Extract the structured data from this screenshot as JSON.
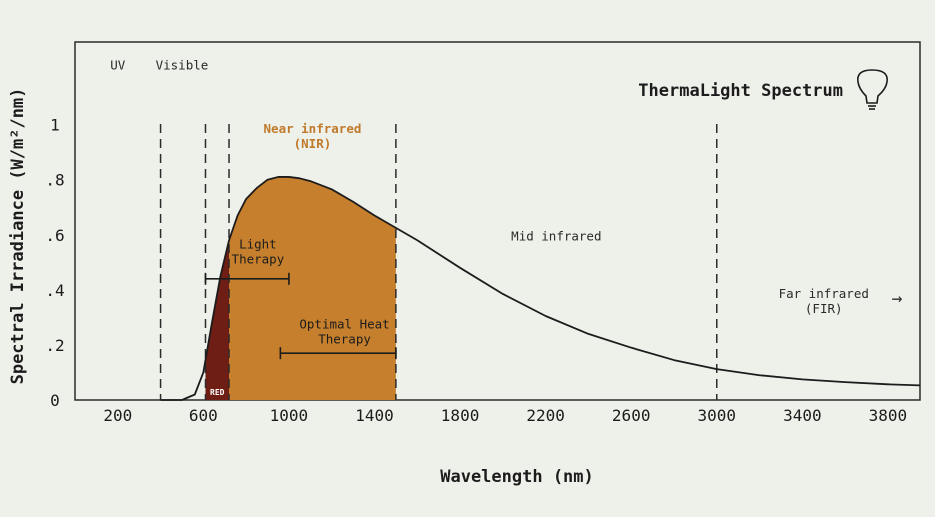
{
  "chart_data": {
    "type": "area",
    "title": "ThermaLight Spectrum",
    "xlabel": "Wavelength (nm)",
    "ylabel": "Spectral Irradiance (W/m²/nm)",
    "xlim": [
      0,
      3950
    ],
    "ylim": [
      0,
      1.3
    ],
    "x_ticks": [
      {
        "value": 200,
        "label": "200"
      },
      {
        "value": 600,
        "label": "600"
      },
      {
        "value": 1000,
        "label": "1000"
      },
      {
        "value": 1400,
        "label": "1400"
      },
      {
        "value": 1800,
        "label": "1800"
      },
      {
        "value": 2200,
        "label": "2200"
      },
      {
        "value": 2600,
        "label": "2600"
      },
      {
        "value": 3000,
        "label": "3000"
      },
      {
        "value": 3400,
        "label": "3400"
      },
      {
        "value": 3800,
        "label": "3800"
      }
    ],
    "y_ticks": [
      {
        "value": 0,
        "label": "0"
      },
      {
        "value": 0.2,
        "label": ".2"
      },
      {
        "value": 0.4,
        "label": ".4"
      },
      {
        "value": 0.6,
        "label": ".6"
      },
      {
        "value": 0.8,
        "label": ".8"
      },
      {
        "value": 1.0,
        "label": "1"
      }
    ],
    "grid": false,
    "curve": {
      "x": [
        400,
        500,
        560,
        600,
        640,
        680,
        720,
        760,
        800,
        850,
        900,
        950,
        1000,
        1050,
        1100,
        1200,
        1300,
        1400,
        1500,
        1600,
        1800,
        2000,
        2200,
        2400,
        2600,
        2800,
        3000,
        3200,
        3400,
        3600,
        3800,
        3950
      ],
      "y": [
        0.0,
        0.0,
        0.02,
        0.1,
        0.28,
        0.45,
        0.58,
        0.67,
        0.73,
        0.77,
        0.8,
        0.81,
        0.81,
        0.805,
        0.795,
        0.765,
        0.72,
        0.67,
        0.625,
        0.58,
        0.48,
        0.385,
        0.305,
        0.24,
        0.19,
        0.145,
        0.112,
        0.09,
        0.075,
        0.065,
        0.057,
        0.053
      ]
    },
    "bands": [
      {
        "from": 610,
        "to": 720,
        "color": "#6e1e14",
        "label": "RED"
      },
      {
        "from": 720,
        "to": 1500,
        "color": "#c67f2c"
      }
    ],
    "boundaries": [
      400,
      610,
      720,
      1500,
      3000
    ],
    "regions": [
      {
        "lines": [
          "UV"
        ],
        "x": 200,
        "y": 1.2,
        "color": "#2a2a2a",
        "bold": false
      },
      {
        "lines": [
          "Visible"
        ],
        "x": 500,
        "y": 1.2,
        "color": "#2a2a2a",
        "bold": false
      },
      {
        "lines": [
          "Near infrared",
          "(NIR)"
        ],
        "x": 1110,
        "y": 0.97,
        "color": "#c07a2c",
        "bold": true
      },
      {
        "lines": [
          "Mid infrared"
        ],
        "x": 2250,
        "y": 0.58,
        "color": "#2a2a2a",
        "bold": false
      },
      {
        "lines": [
          "Far infrared",
          "(FIR)"
        ],
        "x": 3500,
        "y": 0.37,
        "color": "#2a2a2a",
        "bold": false,
        "arrow": "→"
      }
    ],
    "therapy_ranges": [
      {
        "lines": [
          "Light",
          "Therapy"
        ],
        "from": 610,
        "to": 1000,
        "y": 0.44,
        "label_x": 855,
        "label_y": 0.55
      },
      {
        "lines": [
          "Optimal Heat",
          "Therapy"
        ],
        "from": 960,
        "to": 1500,
        "y": 0.17,
        "label_x": 1260,
        "label_y": 0.26
      }
    ]
  },
  "icon": "light-bulb-icon",
  "colors": {
    "background": "#eef0ea",
    "frame": "#2b2b2b",
    "curve": "#1c1c1c",
    "nir_fill": "#c67f2c",
    "red_fill": "#6e1e14",
    "accent_text": "#c07a2c"
  }
}
